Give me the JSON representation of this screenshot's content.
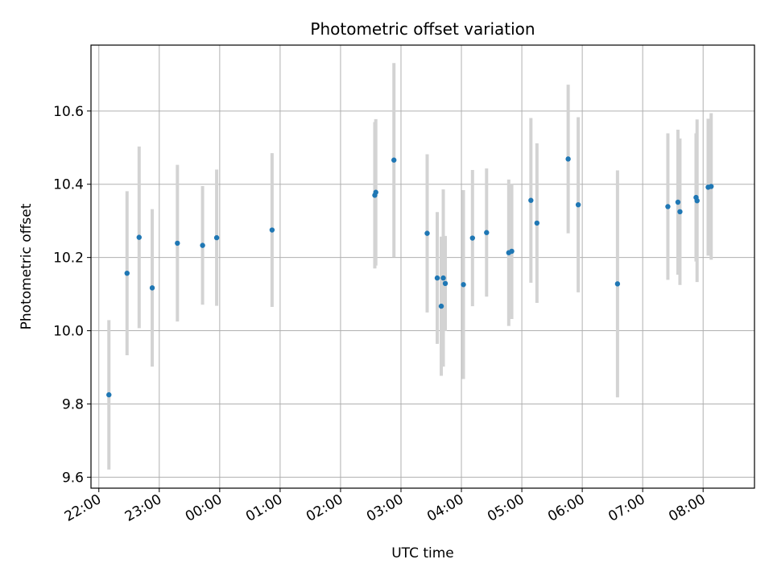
{
  "chart_data": {
    "type": "scatter",
    "title": "Photometric offset variation",
    "xlabel": "UTC time",
    "ylabel": "Photometric offset",
    "grid": true,
    "xlim": [
      21.87,
      32.85
    ],
    "ylim": [
      9.57,
      10.78
    ],
    "x_ticks": [
      {
        "value": 22,
        "label": "22:00"
      },
      {
        "value": 23,
        "label": "23:00"
      },
      {
        "value": 24,
        "label": "00:00"
      },
      {
        "value": 25,
        "label": "01:00"
      },
      {
        "value": 26,
        "label": "02:00"
      },
      {
        "value": 27,
        "label": "03:00"
      },
      {
        "value": 28,
        "label": "04:00"
      },
      {
        "value": 29,
        "label": "05:00"
      },
      {
        "value": 30,
        "label": "06:00"
      },
      {
        "value": 31,
        "label": "07:00"
      },
      {
        "value": 32,
        "label": "08:00"
      }
    ],
    "y_ticks": [
      {
        "value": 9.6,
        "label": "9.6"
      },
      {
        "value": 9.8,
        "label": "9.8"
      },
      {
        "value": 10.0,
        "label": "10.0"
      },
      {
        "value": 10.2,
        "label": "10.2"
      },
      {
        "value": 10.4,
        "label": "10.4"
      },
      {
        "value": 10.6,
        "label": "10.6"
      }
    ],
    "marker_color": "#1f77b4",
    "errorbar_color": "#d3d3d3",
    "points": [
      {
        "t": "22:10",
        "y": 9.825,
        "err": 0.204
      },
      {
        "t": "22:28",
        "y": 10.157,
        "err": 0.224
      },
      {
        "t": "22:40",
        "y": 10.255,
        "err": 0.248
      },
      {
        "t": "22:53",
        "y": 10.117,
        "err": 0.215
      },
      {
        "t": "23:18",
        "y": 10.239,
        "err": 0.214
      },
      {
        "t": "23:43",
        "y": 10.233,
        "err": 0.162
      },
      {
        "t": "23:57",
        "y": 10.254,
        "err": 0.186
      },
      {
        "t": "00:52",
        "y": 10.275,
        "err": 0.21
      },
      {
        "t": "02:34",
        "y": 10.37,
        "err": 0.2
      },
      {
        "t": "02:35",
        "y": 10.378,
        "err": 0.2
      },
      {
        "t": "02:53",
        "y": 10.466,
        "err": 0.265
      },
      {
        "t": "03:26",
        "y": 10.266,
        "err": 0.216
      },
      {
        "t": "03:36",
        "y": 10.144,
        "err": 0.18
      },
      {
        "t": "03:40",
        "y": 10.067,
        "err": 0.19
      },
      {
        "t": "03:42",
        "y": 10.144,
        "err": 0.242
      },
      {
        "t": "03:44",
        "y": 10.129,
        "err": 0.13
      },
      {
        "t": "04:02",
        "y": 10.126,
        "err": 0.258
      },
      {
        "t": "04:11",
        "y": 10.253,
        "err": 0.186
      },
      {
        "t": "04:25",
        "y": 10.268,
        "err": 0.175
      },
      {
        "t": "04:47",
        "y": 10.213,
        "err": 0.2
      },
      {
        "t": "04:50",
        "y": 10.217,
        "err": 0.185
      },
      {
        "t": "05:09",
        "y": 10.356,
        "err": 0.225
      },
      {
        "t": "05:15",
        "y": 10.294,
        "err": 0.218
      },
      {
        "t": "05:46",
        "y": 10.469,
        "err": 0.203
      },
      {
        "t": "05:56",
        "y": 10.344,
        "err": 0.239
      },
      {
        "t": "06:35",
        "y": 10.128,
        "err": 0.31
      },
      {
        "t": "07:25",
        "y": 10.339,
        "err": 0.2
      },
      {
        "t": "07:35",
        "y": 10.351,
        "err": 0.198
      },
      {
        "t": "07:37",
        "y": 10.325,
        "err": 0.2
      },
      {
        "t": "07:53",
        "y": 10.364,
        "err": 0.175
      },
      {
        "t": "07:54",
        "y": 10.355,
        "err": 0.222
      },
      {
        "t": "08:05",
        "y": 10.392,
        "err": 0.187
      },
      {
        "t": "08:08",
        "y": 10.394,
        "err": 0.2
      }
    ]
  }
}
